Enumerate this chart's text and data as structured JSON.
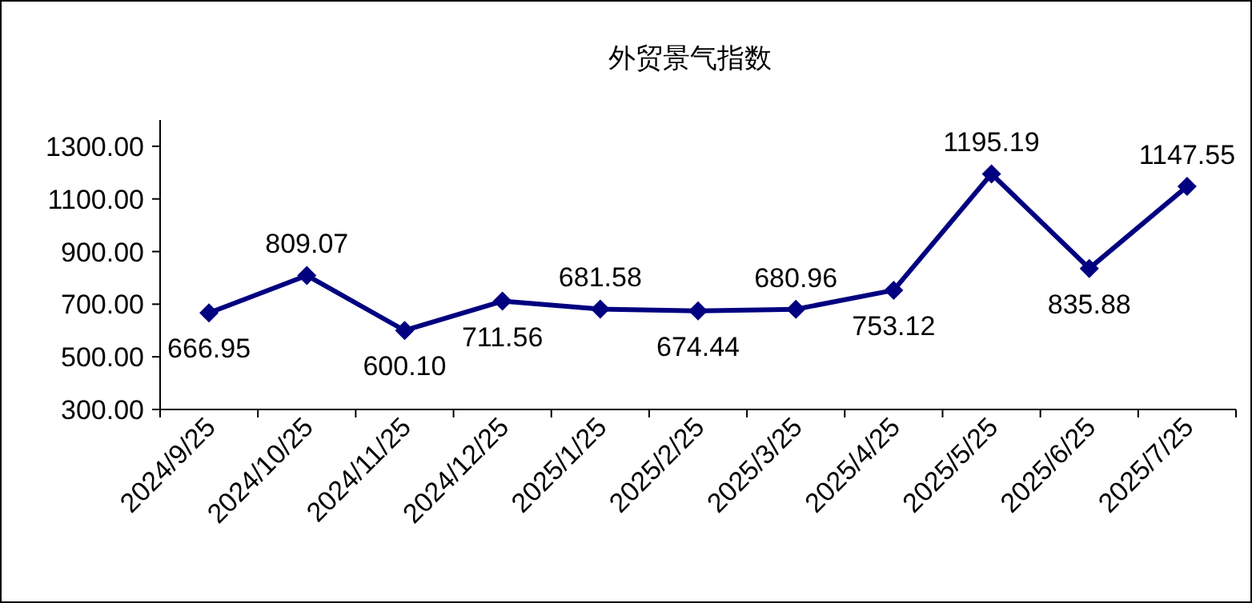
{
  "chart_data": {
    "type": "line",
    "title": "外贸景气指数",
    "categories": [
      "2024/9/25",
      "2024/10/25",
      "2024/11/25",
      "2024/12/25",
      "2025/1/25",
      "2025/2/25",
      "2025/3/25",
      "2025/4/25",
      "2025/5/25",
      "2025/6/25",
      "2025/7/25"
    ],
    "series": [
      {
        "color": "#000080",
        "values": [
          666.95,
          809.07,
          600.1,
          711.56,
          681.58,
          674.44,
          680.96,
          753.12,
          1195.19,
          835.88,
          1147.55
        ],
        "value_labels": [
          "666.95",
          "809.07",
          "600.10",
          "711.56",
          "681.58",
          "674.44",
          "680.96",
          "753.12",
          "1195.19",
          "835.88",
          "1147.55"
        ]
      }
    ],
    "ylim": [
      300,
      1400
    ],
    "yticks": [
      {
        "value": 300,
        "label": "300.00"
      },
      {
        "value": 500,
        "label": "500.00"
      },
      {
        "value": 700,
        "label": "700.00"
      },
      {
        "value": 900,
        "label": "900.00"
      },
      {
        "value": 1100,
        "label": "1100.00"
      },
      {
        "value": 1300,
        "label": "1300.00"
      }
    ],
    "marker": "diamond",
    "line_style": "solid",
    "grid": false
  }
}
